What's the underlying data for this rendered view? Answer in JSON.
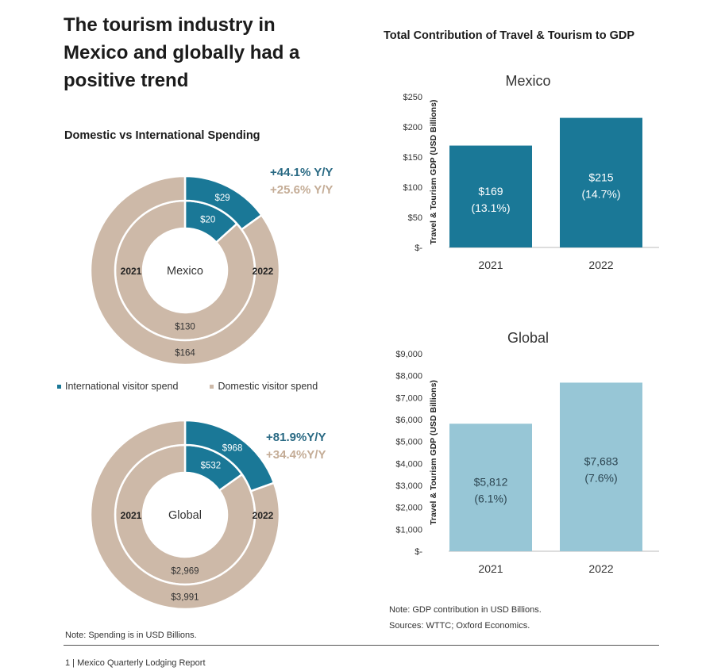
{
  "page": {
    "title": "The tourism industry in Mexico and globally had a positive trend",
    "subtitle_left": "Domestic vs International Spending",
    "title_right": "Total Contribution of Travel & Tourism to GDP",
    "note_left": "Note: Spending is in USD Billions.",
    "note_right_1": "Note: GDP contribution in USD Billions.",
    "note_right_2": "Sources: WTTC; Oxford Economics.",
    "footer": "1 | Mexico Quarterly Lodging Report"
  },
  "colors": {
    "international": "#1a7897",
    "domestic": "#cdb9a8",
    "mexico_bar": "#1a7897",
    "global_bar": "#97c6d6"
  },
  "legend": {
    "international": "International visitor spend",
    "domestic": "Domestic visitor spend"
  },
  "chart_data": [
    {
      "type": "pie",
      "subtype": "donut-nested",
      "center_label": "Mexico",
      "inner_ring_label": "2021",
      "outer_ring_label": "2022",
      "categories": [
        "International visitor spend",
        "Domestic visitor spend"
      ],
      "rings": [
        {
          "year": "2021",
          "values": [
            20,
            130
          ],
          "labels": [
            "$20",
            "$130"
          ]
        },
        {
          "year": "2022",
          "values": [
            29,
            164
          ],
          "labels": [
            "$29",
            "$164"
          ]
        }
      ],
      "annotations": [
        "+44.1% Y/Y",
        "+25.6% Y/Y"
      ]
    },
    {
      "type": "pie",
      "subtype": "donut-nested",
      "center_label": "Global",
      "inner_ring_label": "2021",
      "outer_ring_label": "2022",
      "categories": [
        "International visitor spend",
        "Domestic visitor spend"
      ],
      "rings": [
        {
          "year": "2021",
          "values": [
            532,
            2969
          ],
          "labels": [
            "$532",
            "$2,969"
          ]
        },
        {
          "year": "2022",
          "values": [
            968,
            3991
          ],
          "labels": [
            "$968",
            "$3,991"
          ]
        }
      ],
      "annotations": [
        "+81.9%Y/Y",
        "+34.4%Y/Y"
      ]
    },
    {
      "type": "bar",
      "title": "Mexico",
      "ylabel": "Travel & Tourism GDP (USD Billions)",
      "categories": [
        "2021",
        "2022"
      ],
      "values": [
        169,
        215
      ],
      "data_labels": [
        [
          "$169",
          "(13.1%)"
        ],
        [
          "$215",
          "(14.7%)"
        ]
      ],
      "ylim": [
        0,
        250
      ],
      "yticks": [
        0,
        50,
        100,
        150,
        200,
        250
      ],
      "ytick_labels": [
        "$-",
        "$50",
        "$100",
        "$150",
        "$200",
        "$250"
      ]
    },
    {
      "type": "bar",
      "title": "Global",
      "ylabel": "Travel & Tourism GDP (USD Billions)",
      "categories": [
        "2021",
        "2022"
      ],
      "values": [
        5812,
        7683
      ],
      "data_labels": [
        [
          "$5,812",
          "(6.1%)"
        ],
        [
          "$7,683",
          "(7.6%)"
        ]
      ],
      "ylim": [
        0,
        9000
      ],
      "yticks": [
        0,
        1000,
        2000,
        3000,
        4000,
        5000,
        6000,
        7000,
        8000,
        9000
      ],
      "ytick_labels": [
        "$-",
        "$1,000",
        "$2,000",
        "$3,000",
        "$4,000",
        "$5,000",
        "$6,000",
        "$7,000",
        "$8,000",
        "$9,000"
      ]
    }
  ]
}
